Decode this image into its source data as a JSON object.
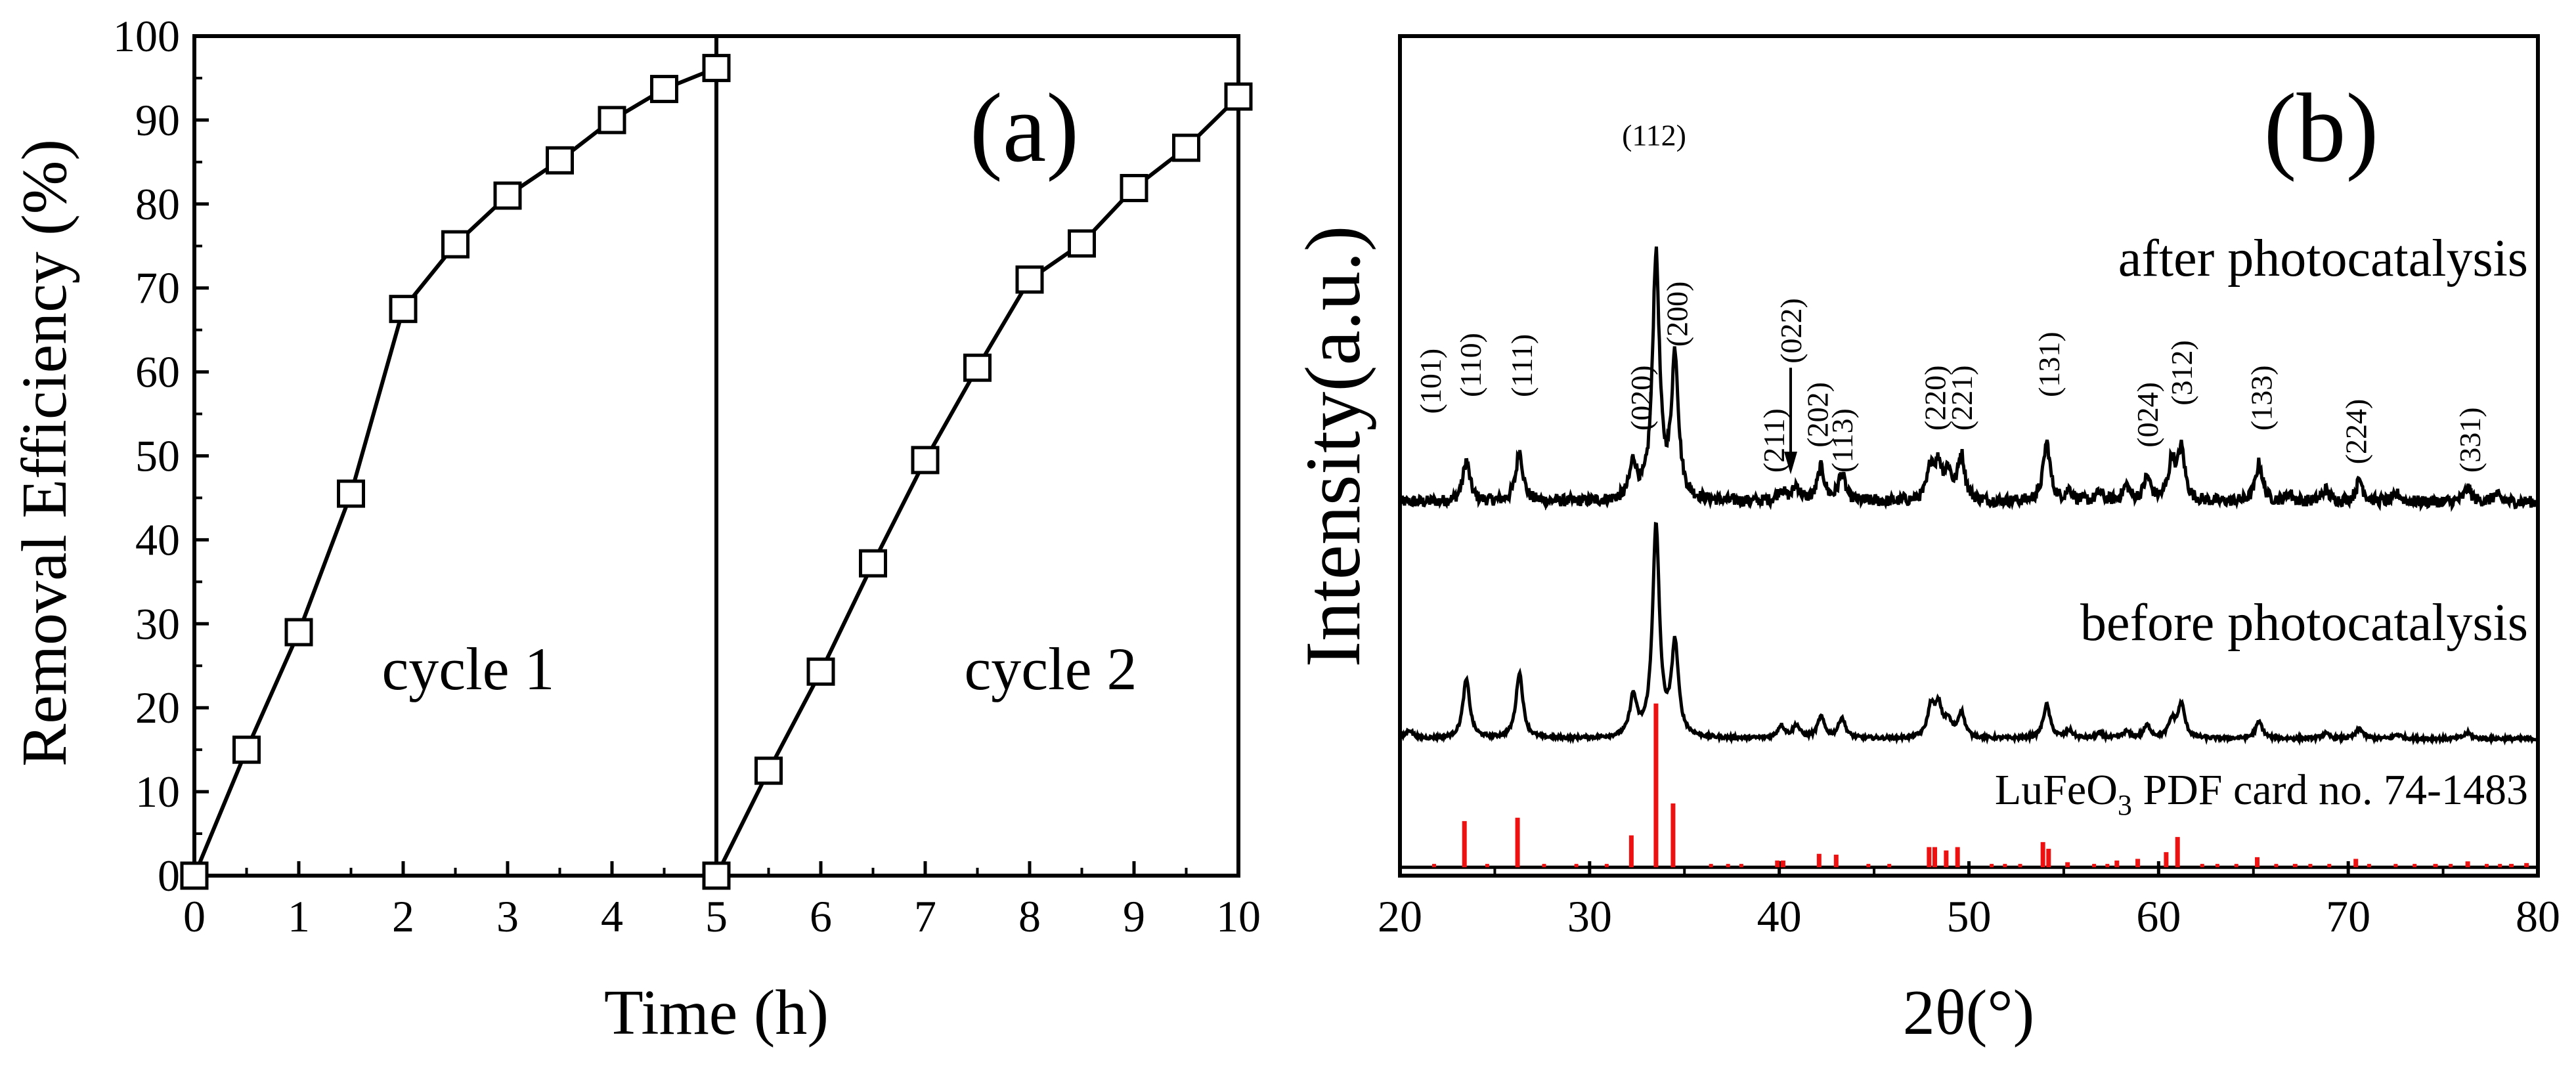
{
  "panel_a": {
    "label": "(a)",
    "cycle_labels": [
      "cycle 1",
      "cycle 2"
    ]
  },
  "panel_b": {
    "label": "(b)",
    "pdf_label": {
      "prefix": "LuFeO",
      "sub": "3",
      "suffix": " PDF card no. 74-1483"
    }
  },
  "chart_data": [
    {
      "type": "line",
      "title": "(a)",
      "xlabel": "Time (h)",
      "ylabel": "Removal Efficiency (%)",
      "xlim": [
        0,
        10
      ],
      "ylim": [
        0,
        100
      ],
      "xticks": [
        0,
        1,
        2,
        3,
        4,
        5,
        6,
        7,
        8,
        9,
        10
      ],
      "yticks": [
        0,
        10,
        20,
        30,
        40,
        50,
        60,
        70,
        80,
        90,
        100
      ],
      "marker": "open-square",
      "divider_x": 5,
      "series": [
        {
          "name": "cycle 1",
          "x": [
            0,
            0.5,
            1,
            1.5,
            2,
            2.5,
            3,
            3.5,
            4,
            4.5,
            5
          ],
          "y": [
            0,
            15,
            29,
            45.5,
            67.5,
            75.2,
            81,
            85.2,
            90,
            93.7,
            96.2
          ]
        },
        {
          "name": "cycle 2",
          "x": [
            5,
            5.5,
            6,
            6.5,
            7,
            7.5,
            8,
            8.5,
            9,
            9.5,
            10
          ],
          "y": [
            0,
            12.5,
            24.3,
            37.2,
            49.5,
            60.5,
            71,
            75.3,
            81.9,
            86.7,
            92.8
          ]
        }
      ]
    },
    {
      "type": "line",
      "title": "(b)",
      "xlabel": "2θ(°)",
      "ylabel": "Intensity(a.u.)",
      "xlim": [
        20,
        80
      ],
      "xticks": [
        20,
        30,
        40,
        50,
        60,
        70,
        80
      ],
      "ylim": [
        0,
        1
      ],
      "peak_width_deg": 0.22,
      "series": [
        {
          "name": "after photocatalysis",
          "baseline": 0.445,
          "noise": 0.007,
          "peaks": [
            [
              23.5,
              0.048
            ],
            [
              26.3,
              0.06
            ],
            [
              32.3,
              0.043
            ],
            [
              33.5,
              0.29
            ],
            [
              34.5,
              0.17
            ],
            [
              40.1,
              0.014
            ],
            [
              40.9,
              0.018
            ],
            [
              42.2,
              0.04
            ],
            [
              43.3,
              0.032
            ],
            [
              48.0,
              0.04
            ],
            [
              48.4,
              0.038
            ],
            [
              48.9,
              0.032
            ],
            [
              49.6,
              0.054
            ],
            [
              54.1,
              0.07
            ],
            [
              55.3,
              0.013
            ],
            [
              56.9,
              0.01
            ],
            [
              58.3,
              0.018
            ],
            [
              59.4,
              0.028
            ],
            [
              60.7,
              0.046
            ],
            [
              61.2,
              0.06
            ],
            [
              65.3,
              0.046
            ],
            [
              66.9,
              0.009
            ],
            [
              68.8,
              0.014
            ],
            [
              70.6,
              0.026
            ],
            [
              72.6,
              0.009
            ],
            [
              76.3,
              0.016
            ],
            [
              77.8,
              0.008
            ]
          ]
        },
        {
          "name": "before photocatalysis",
          "baseline": 0.163,
          "noise": 0.002,
          "peaks": [
            [
              20.5,
              0.01
            ],
            [
              23.5,
              0.07
            ],
            [
              26.3,
              0.078
            ],
            [
              32.3,
              0.047
            ],
            [
              33.5,
              0.25
            ],
            [
              34.5,
              0.109
            ],
            [
              40.1,
              0.015
            ],
            [
              40.9,
              0.015
            ],
            [
              42.2,
              0.025
            ],
            [
              43.3,
              0.024
            ],
            [
              48.0,
              0.036
            ],
            [
              48.4,
              0.035
            ],
            [
              48.9,
              0.018
            ],
            [
              49.6,
              0.03
            ],
            [
              54.1,
              0.04
            ],
            [
              55.3,
              0.009
            ],
            [
              56.9,
              0.006
            ],
            [
              58.3,
              0.008
            ],
            [
              59.4,
              0.015
            ],
            [
              60.7,
              0.02
            ],
            [
              61.2,
              0.04
            ],
            [
              65.3,
              0.02
            ],
            [
              68.8,
              0.006
            ],
            [
              70.6,
              0.012
            ],
            [
              72.6,
              0.005
            ],
            [
              76.3,
              0.007
            ]
          ]
        },
        {
          "name": "LuFeO3 PDF card no. 74-1483",
          "type": "stick",
          "baseline": 0.01,
          "sticks": [
            [
              23.4,
              0.055
            ],
            [
              26.2,
              0.059
            ],
            [
              32.2,
              0.038
            ],
            [
              33.5,
              0.195
            ],
            [
              34.4,
              0.076
            ],
            [
              39.9,
              0.008
            ],
            [
              40.2,
              0.008
            ],
            [
              42.1,
              0.016
            ],
            [
              43.0,
              0.015
            ],
            [
              47.9,
              0.024
            ],
            [
              48.2,
              0.024
            ],
            [
              48.8,
              0.02
            ],
            [
              49.4,
              0.024
            ],
            [
              53.9,
              0.03
            ],
            [
              54.2,
              0.022
            ],
            [
              55.2,
              0.006
            ],
            [
              57.8,
              0.008
            ],
            [
              58.9,
              0.01
            ],
            [
              60.4,
              0.018
            ],
            [
              61.0,
              0.036
            ],
            [
              65.2,
              0.012
            ],
            [
              67.2,
              0.004
            ],
            [
              70.4,
              0.01
            ],
            [
              74.6,
              0.004
            ],
            [
              76.3,
              0.007
            ],
            [
              78.6,
              0.004
            ],
            [
              79.4,
              0.005
            ]
          ],
          "extra_minor_sticks": [
            21.8,
            24.6,
            27.6,
            29.3,
            30.9,
            36.4,
            37.3,
            38.0,
            44.7,
            45.8,
            51.2,
            51.9,
            52.7,
            56.6,
            57.3,
            62.3,
            63.1,
            64.1,
            66.2,
            68.0,
            69.0,
            71.1,
            72.5,
            73.5,
            75.4,
            77.3,
            78.0
          ]
        },
        {
          "name": "hkl_labels",
          "labels": [
            [
              "(101)",
              21.6,
              0.55
            ],
            [
              "(110)",
              23.7,
              0.57
            ],
            [
              "(111)",
              26.4,
              0.57
            ],
            [
              "(020)",
              32.7,
              0.53
            ],
            [
              "(112)",
              33.4,
              0.87
            ],
            [
              "(200)",
              34.6,
              0.63
            ],
            [
              "(211)",
              39.7,
              0.48
            ],
            [
              "(022)",
              40.6,
              0.61
            ],
            [
              "(202)",
              42.0,
              0.51
            ],
            [
              "(113)",
              43.3,
              0.48
            ],
            [
              "(220)",
              48.2,
              0.53
            ],
            [
              "(221)",
              49.6,
              0.53
            ],
            [
              "(131)",
              54.2,
              0.57
            ],
            [
              "(024)",
              59.4,
              0.51
            ],
            [
              "(312)",
              61.2,
              0.56
            ],
            [
              "(133)",
              65.4,
              0.53
            ],
            [
              "(224)",
              70.4,
              0.49
            ],
            [
              "(331)",
              76.4,
              0.48
            ]
          ]
        }
      ]
    }
  ]
}
